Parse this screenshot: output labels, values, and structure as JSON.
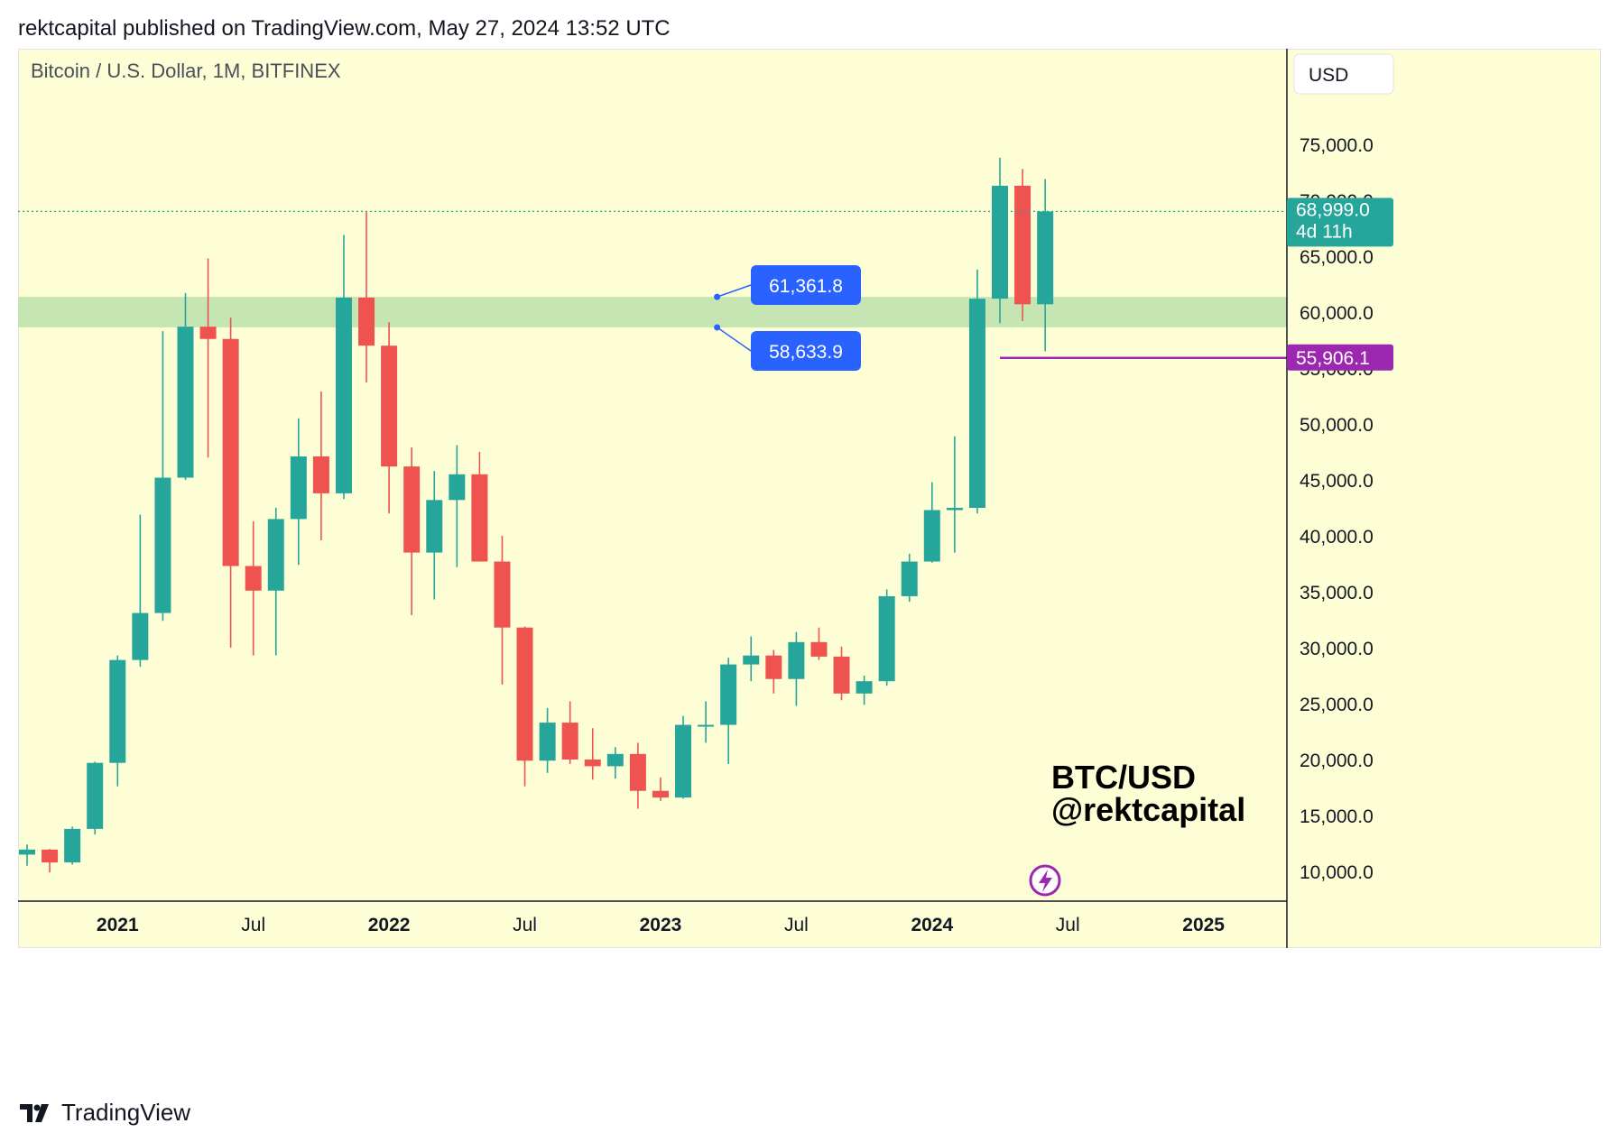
{
  "header": {
    "published_line": "rektcapital published on TradingView.com, May 27, 2024 13:52 UTC"
  },
  "chart": {
    "symbol_line": "Bitcoin / U.S. Dollar, 1M, BITFINEX",
    "currency_button": "USD",
    "watermark_line1": "BTC/USD",
    "watermark_line2": "@rektcapital"
  },
  "footer": {
    "brand": "TradingView"
  },
  "chart_data": {
    "type": "candlestick",
    "title": "Bitcoin / U.S. Dollar, 1M, BITFINEX",
    "ylim": [
      7500,
      80000
    ],
    "y_ticks": [
      10000,
      15000,
      20000,
      25000,
      30000,
      35000,
      40000,
      45000,
      50000,
      55000,
      60000,
      65000,
      70000,
      75000
    ],
    "y_tick_labels": [
      "10,000.0",
      "15,000.0",
      "20,000.0",
      "25,000.0",
      "30,000.0",
      "35,000.0",
      "40,000.0",
      "45,000.0",
      "50,000.0",
      "55,000.0",
      "60,000.0",
      "65,000.0",
      "70,000.0",
      "75,000.0"
    ],
    "x_ticks": [
      {
        "label": "2021",
        "month_index": 4,
        "bold": true
      },
      {
        "label": "Jul",
        "month_index": 10,
        "bold": false
      },
      {
        "label": "2022",
        "month_index": 16,
        "bold": true
      },
      {
        "label": "Jul",
        "month_index": 22,
        "bold": false
      },
      {
        "label": "2023",
        "month_index": 28,
        "bold": true
      },
      {
        "label": "Jul",
        "month_index": 34,
        "bold": false
      },
      {
        "label": "2024",
        "month_index": 40,
        "bold": true
      },
      {
        "label": "Jul",
        "month_index": 46,
        "bold": false
      },
      {
        "label": "2025",
        "month_index": 52,
        "bold": true
      }
    ],
    "candles": [
      {
        "o": 11500,
        "h": 12400,
        "l": 10500,
        "c": 11950
      },
      {
        "o": 11950,
        "h": 12000,
        "l": 9900,
        "c": 10800
      },
      {
        "o": 10800,
        "h": 14000,
        "l": 10600,
        "c": 13800
      },
      {
        "o": 13800,
        "h": 19800,
        "l": 13300,
        "c": 19700
      },
      {
        "o": 19700,
        "h": 29300,
        "l": 17600,
        "c": 28900
      },
      {
        "o": 28900,
        "h": 41900,
        "l": 28300,
        "c": 33100
      },
      {
        "o": 33100,
        "h": 58300,
        "l": 32400,
        "c": 45200
      },
      {
        "o": 45200,
        "h": 61700,
        "l": 45000,
        "c": 58700
      },
      {
        "o": 58700,
        "h": 64800,
        "l": 47000,
        "c": 57600
      },
      {
        "o": 57600,
        "h": 59500,
        "l": 30000,
        "c": 37300
      },
      {
        "o": 37300,
        "h": 41300,
        "l": 29300,
        "c": 35100
      },
      {
        "o": 35100,
        "h": 42500,
        "l": 29300,
        "c": 41500
      },
      {
        "o": 41500,
        "h": 50500,
        "l": 37400,
        "c": 47100
      },
      {
        "o": 47100,
        "h": 52900,
        "l": 39600,
        "c": 43800
      },
      {
        "o": 43800,
        "h": 66900,
        "l": 43300,
        "c": 61300
      },
      {
        "o": 61300,
        "h": 69000,
        "l": 53700,
        "c": 57000
      },
      {
        "o": 57000,
        "h": 59100,
        "l": 42000,
        "c": 46200
      },
      {
        "o": 46200,
        "h": 47900,
        "l": 32900,
        "c": 38500
      },
      {
        "o": 38500,
        "h": 45800,
        "l": 34300,
        "c": 43200
      },
      {
        "o": 43200,
        "h": 48100,
        "l": 37200,
        "c": 45500
      },
      {
        "o": 45500,
        "h": 47500,
        "l": 37700,
        "c": 37700
      },
      {
        "o": 37700,
        "h": 40000,
        "l": 26700,
        "c": 31800
      },
      {
        "o": 31800,
        "h": 31900,
        "l": 17600,
        "c": 19900
      },
      {
        "o": 19900,
        "h": 24600,
        "l": 18800,
        "c": 23300
      },
      {
        "o": 23300,
        "h": 25200,
        "l": 19600,
        "c": 20000
      },
      {
        "o": 20000,
        "h": 22800,
        "l": 18200,
        "c": 19400
      },
      {
        "o": 19400,
        "h": 21100,
        "l": 18300,
        "c": 20500
      },
      {
        "o": 20500,
        "h": 21500,
        "l": 15600,
        "c": 17200
      },
      {
        "o": 17200,
        "h": 18400,
        "l": 16300,
        "c": 16600
      },
      {
        "o": 16600,
        "h": 23900,
        "l": 16500,
        "c": 23100
      },
      {
        "o": 23100,
        "h": 25200,
        "l": 21500,
        "c": 23100
      },
      {
        "o": 23100,
        "h": 29100,
        "l": 19600,
        "c": 28500
      },
      {
        "o": 28500,
        "h": 31000,
        "l": 27000,
        "c": 29300
      },
      {
        "o": 29300,
        "h": 29800,
        "l": 25900,
        "c": 27200
      },
      {
        "o": 27200,
        "h": 31400,
        "l": 24800,
        "c": 30500
      },
      {
        "o": 30500,
        "h": 31800,
        "l": 28900,
        "c": 29200
      },
      {
        "o": 29200,
        "h": 30100,
        "l": 25300,
        "c": 25900
      },
      {
        "o": 25900,
        "h": 27500,
        "l": 24900,
        "c": 27000
      },
      {
        "o": 27000,
        "h": 35200,
        "l": 26600,
        "c": 34600
      },
      {
        "o": 34600,
        "h": 38400,
        "l": 34100,
        "c": 37700
      },
      {
        "o": 37700,
        "h": 44800,
        "l": 37600,
        "c": 42300
      },
      {
        "o": 42300,
        "h": 48900,
        "l": 38500,
        "c": 42500
      },
      {
        "o": 42500,
        "h": 63800,
        "l": 42000,
        "c": 61200
      },
      {
        "o": 61200,
        "h": 73800,
        "l": 59000,
        "c": 71300
      },
      {
        "o": 71300,
        "h": 72800,
        "l": 59200,
        "c": 60700
      },
      {
        "o": 60700,
        "h": 71900,
        "l": 56500,
        "c": 68999
      }
    ],
    "support_zone": {
      "low": 58633.9,
      "high": 61361.8,
      "labels": [
        "61,361.8",
        "58,633.9"
      ]
    },
    "last_price": {
      "value": 68999.0,
      "label": "68,999.0",
      "countdown": "4d 11h"
    },
    "horizontal_line": {
      "value": 55906.1,
      "label": "55,906.1",
      "from_month_index": 43
    }
  }
}
